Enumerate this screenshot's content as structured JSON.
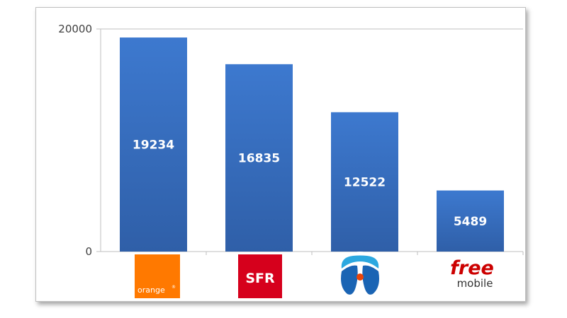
{
  "chart_data": {
    "type": "bar",
    "categories": [
      "orange",
      "SFR",
      "Bouygues Telecom",
      "Free mobile"
    ],
    "values": [
      19234,
      16835,
      12522,
      5489
    ],
    "ylim": [
      0,
      20000
    ],
    "yticks": [
      0,
      20000
    ],
    "bar_color": "#3a72c4",
    "grid": true
  },
  "logos": {
    "orange": {
      "text": "orange",
      "sup": "®",
      "color": "#ff7900"
    },
    "sfr": {
      "text": "SFR",
      "color": "#d6001c"
    },
    "bouygues": {
      "name": "bouygues-logo",
      "colors": [
        "#1a64b4",
        "#2ca8e0",
        "#e8450a"
      ]
    },
    "free": {
      "line1": "free",
      "line2": "mobile",
      "color": "#cc0000"
    }
  }
}
